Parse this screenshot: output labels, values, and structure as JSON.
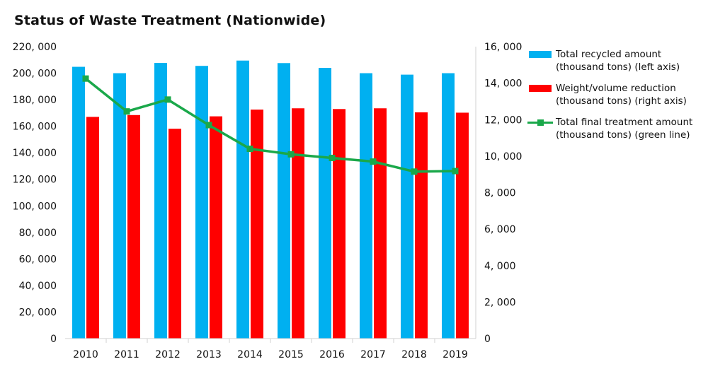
{
  "chart_data": {
    "type": "bar",
    "title": "Status of Waste Treatment (Nationwide)",
    "categories": [
      "2010",
      "2011",
      "2012",
      "2013",
      "2014",
      "2015",
      "2016",
      "2017",
      "2018",
      "2019"
    ],
    "series": [
      {
        "name": "Total recycled amount",
        "legend_lines": [
          "Total recycled amount",
          "(thousand tons) (left axis)"
        ],
        "type": "bar",
        "axis": "left",
        "color": "#00b0f0",
        "values": [
          204800,
          200000,
          207700,
          205500,
          209500,
          207600,
          204000,
          200000,
          198900,
          200000
        ]
      },
      {
        "name": "Weight/volume reduction",
        "legend_lines": [
          "Weight/volume reduction",
          "(thousand tons) (right axis)"
        ],
        "type": "bar",
        "axis": "right",
        "color": "#ff0000",
        "values": [
          12150,
          12250,
          11500,
          12180,
          12550,
          12620,
          12580,
          12620,
          12400,
          12380
        ]
      },
      {
        "name": "Total final treatment amount",
        "legend_lines": [
          "Total final treatment amount",
          "(thousand tons) (green line)"
        ],
        "type": "line",
        "axis": "right",
        "color": "#1aa84a",
        "values": [
          14250,
          12450,
          13100,
          11700,
          10400,
          10100,
          9900,
          9700,
          9150,
          9180
        ]
      }
    ],
    "left_axis": {
      "ylim": [
        0,
        220000
      ],
      "ticks": [
        0,
        20000,
        40000,
        60000,
        80000,
        100000,
        120000,
        140000,
        160000,
        180000,
        200000,
        220000
      ],
      "tick_labels": [
        "0",
        "20, 000",
        "40, 000",
        "60, 000",
        "80, 000",
        "100, 000",
        "120, 000",
        "140, 000",
        "160, 000",
        "180, 000",
        "200, 000",
        "220, 000"
      ]
    },
    "right_axis": {
      "ylim": [
        0,
        16000
      ],
      "ticks": [
        0,
        2000,
        4000,
        6000,
        8000,
        10000,
        12000,
        14000,
        16000
      ],
      "tick_labels": [
        "0",
        "2, 000",
        "4, 000",
        "6, 000",
        "8, 000",
        "10, 000",
        "12, 000",
        "14, 000",
        "16, 000"
      ]
    },
    "xlabel": "",
    "ylabel": "",
    "grid": false,
    "legend_position": "right"
  }
}
